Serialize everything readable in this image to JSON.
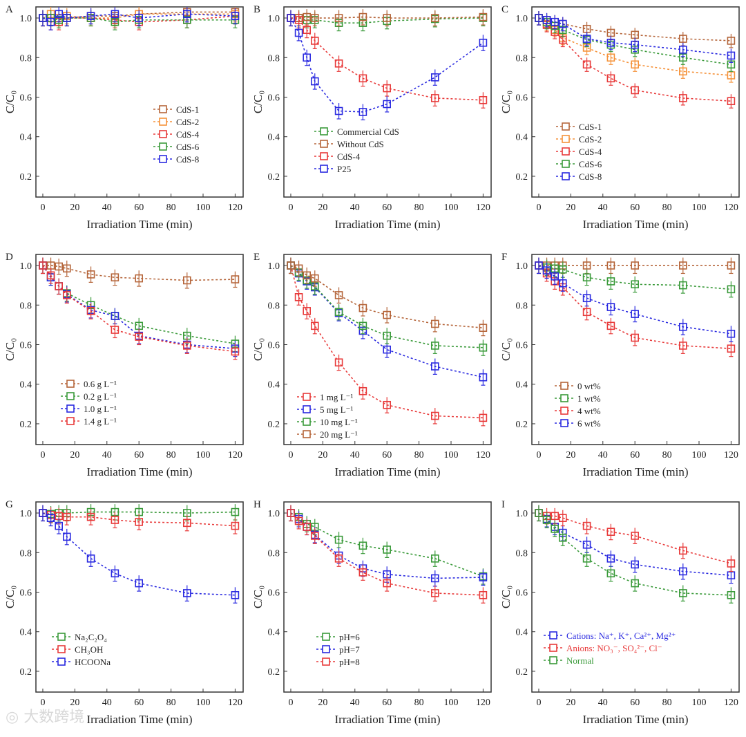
{
  "watermark": "大数跨境",
  "chart_data": [
    {
      "panel": "A",
      "type": "line",
      "xlabel": "Irradiation Time (min)",
      "ylabel": "C/C₀",
      "xlim": [
        -4.3,
        125
      ],
      "ylim": [
        0.095,
        1.056
      ],
      "xticks": [
        0,
        20,
        40,
        60,
        80,
        100,
        120
      ],
      "yticks": [
        0.2,
        0.4,
        0.6,
        0.8,
        1.0
      ],
      "legend_position": "center-right",
      "error_bar": 0.04,
      "x": [
        0,
        5,
        10,
        15,
        30,
        45,
        60,
        90,
        120
      ],
      "series": [
        {
          "name": "CdS-1",
          "color": "#b5653a",
          "values": [
            1,
            1.0,
            1.0,
            1.0,
            1.01,
            1.01,
            1.02,
            1.03,
            1.03
          ]
        },
        {
          "name": "CdS-2",
          "color": "#f5923a",
          "values": [
            1,
            1.02,
            1.0,
            1.01,
            1.0,
            1.0,
            1.02,
            1.02,
            1.02
          ]
        },
        {
          "name": "CdS-4",
          "color": "#e83a3a",
          "values": [
            1,
            0.98,
            0.98,
            1.0,
            1.0,
            0.99,
            0.98,
            0.99,
            1.01
          ]
        },
        {
          "name": "CdS-6",
          "color": "#3a9a3a",
          "values": [
            1,
            1.0,
            0.99,
            1.0,
            1.0,
            0.98,
            0.99,
            0.99,
            0.99
          ]
        },
        {
          "name": "CdS-8",
          "color": "#2a2ae0",
          "values": [
            1,
            0.98,
            1.02,
            1.0,
            1.01,
            1.02,
            1.0,
            1.02,
            1.01
          ]
        }
      ]
    },
    {
      "panel": "B",
      "type": "line",
      "xlabel": "Irradiation Time (min)",
      "ylabel": "C/C₀",
      "xlim": [
        -4.3,
        125
      ],
      "ylim": [
        0.095,
        1.056
      ],
      "xticks": [
        0,
        20,
        40,
        60,
        80,
        100,
        120
      ],
      "yticks": [
        0.2,
        0.4,
        0.6,
        0.8,
        1.0
      ],
      "legend_position": "lower-left",
      "error_bar": 0.04,
      "x": [
        0,
        5,
        10,
        15,
        30,
        45,
        60,
        90,
        120
      ],
      "series": [
        {
          "name": "Commercial CdS",
          "color": "#3a9a3a",
          "values": [
            1,
            1.0,
            0.99,
            0.99,
            0.975,
            0.975,
            0.985,
            0.995,
            1.0
          ]
        },
        {
          "name": "Without CdS",
          "color": "#b5653a",
          "values": [
            1,
            1.0,
            1.005,
            1.0,
            1.0,
            1.005,
            1.0,
            1.0,
            1.005
          ]
        },
        {
          "name": "CdS-4",
          "color": "#e83a3a",
          "values": [
            1,
            0.99,
            0.94,
            0.885,
            0.77,
            0.695,
            0.645,
            0.595,
            0.585
          ]
        },
        {
          "name": "P25",
          "color": "#2a2ae0",
          "values": [
            1,
            0.925,
            0.8,
            0.68,
            0.53,
            0.525,
            0.565,
            0.7,
            0.875
          ]
        }
      ]
    },
    {
      "panel": "C",
      "type": "line",
      "xlabel": "Irradiation Time (min)",
      "ylabel": "C/C₀",
      "xlim": [
        -4.3,
        125
      ],
      "ylim": [
        0.095,
        1.056
      ],
      "xticks": [
        0,
        20,
        40,
        60,
        80,
        100,
        120
      ],
      "yticks": [
        0.2,
        0.4,
        0.6,
        0.8,
        1.0
      ],
      "legend_position": "lower-left",
      "error_bar": 0.035,
      "x": [
        0,
        5,
        10,
        15,
        30,
        45,
        60,
        90,
        120
      ],
      "series": [
        {
          "name": "CdS-1",
          "color": "#b5653a",
          "values": [
            1,
            0.99,
            0.98,
            0.97,
            0.945,
            0.925,
            0.915,
            0.895,
            0.885
          ]
        },
        {
          "name": "CdS-2",
          "color": "#f5923a",
          "values": [
            1,
            0.97,
            0.94,
            0.9,
            0.85,
            0.8,
            0.765,
            0.73,
            0.71
          ]
        },
        {
          "name": "CdS-4",
          "color": "#e83a3a",
          "values": [
            1,
            0.965,
            0.93,
            0.89,
            0.765,
            0.695,
            0.635,
            0.595,
            0.58
          ]
        },
        {
          "name": "CdS-6",
          "color": "#3a9a3a",
          "values": [
            1,
            0.98,
            0.96,
            0.94,
            0.89,
            0.865,
            0.84,
            0.8,
            0.765
          ]
        },
        {
          "name": "CdS-8",
          "color": "#2a2ae0",
          "values": [
            1,
            0.99,
            0.98,
            0.97,
            0.895,
            0.875,
            0.865,
            0.84,
            0.81
          ]
        }
      ]
    },
    {
      "panel": "D",
      "type": "line",
      "xlabel": "Irradiation Time (min)",
      "ylabel": "C/C₀",
      "xlim": [
        -4.3,
        125
      ],
      "ylim": [
        0.095,
        1.056
      ],
      "xticks": [
        0,
        20,
        40,
        60,
        80,
        100,
        120
      ],
      "yticks": [
        0.2,
        0.4,
        0.6,
        0.8,
        1.0
      ],
      "legend_position": "lower-left",
      "error_bar": 0.04,
      "x": [
        0,
        5,
        10,
        15,
        30,
        45,
        60,
        90,
        120
      ],
      "series": [
        {
          "name": "0.6 g L⁻¹",
          "color": "#b5653a",
          "values": [
            1,
            1.0,
            0.995,
            0.985,
            0.955,
            0.94,
            0.935,
            0.925,
            0.93
          ]
        },
        {
          "name": "0.2 g L⁻¹",
          "color": "#3a9a3a",
          "values": [
            1,
            0.94,
            0.895,
            0.86,
            0.8,
            0.745,
            0.695,
            0.645,
            0.605
          ]
        },
        {
          "name": "1.0 g L⁻¹",
          "color": "#2a2ae0",
          "values": [
            1,
            0.94,
            0.895,
            0.855,
            0.775,
            0.745,
            0.645,
            0.6,
            0.58
          ]
        },
        {
          "name": "1.4 g L⁻¹",
          "color": "#e83a3a",
          "values": [
            1,
            0.95,
            0.895,
            0.85,
            0.77,
            0.675,
            0.64,
            0.595,
            0.565
          ]
        }
      ]
    },
    {
      "panel": "E",
      "type": "line",
      "xlabel": "Irradiation Time (min)",
      "ylabel": "C/C₀",
      "xlim": [
        -4.3,
        125
      ],
      "ylim": [
        0.095,
        1.056
      ],
      "xticks": [
        0,
        20,
        40,
        60,
        80,
        100,
        120
      ],
      "yticks": [
        0.2,
        0.4,
        0.6,
        0.8,
        1.0
      ],
      "legend_position": "lower-left",
      "error_bar": 0.04,
      "x": [
        0,
        5,
        10,
        15,
        30,
        45,
        60,
        90,
        120
      ],
      "series": [
        {
          "name": "1 mg L⁻¹",
          "color": "#e83a3a",
          "values": [
            1,
            0.84,
            0.77,
            0.695,
            0.51,
            0.365,
            0.295,
            0.24,
            0.23
          ]
        },
        {
          "name": "5 mg L⁻¹",
          "color": "#2a2ae0",
          "values": [
            1,
            0.96,
            0.92,
            0.89,
            0.76,
            0.67,
            0.575,
            0.49,
            0.435
          ]
        },
        {
          "name": "10 mg L⁻¹",
          "color": "#3a9a3a",
          "values": [
            1,
            0.965,
            0.925,
            0.895,
            0.765,
            0.695,
            0.645,
            0.595,
            0.585
          ]
        },
        {
          "name": "20 mg L⁻¹",
          "color": "#b5653a",
          "values": [
            1,
            0.985,
            0.95,
            0.935,
            0.85,
            0.785,
            0.75,
            0.705,
            0.685
          ]
        }
      ]
    },
    {
      "panel": "F",
      "type": "line",
      "xlabel": "Irradiation Time (min)",
      "ylabel": "C/C₀",
      "xlim": [
        -4.3,
        125
      ],
      "ylim": [
        0.095,
        1.056
      ],
      "xticks": [
        0,
        20,
        40,
        60,
        80,
        100,
        120
      ],
      "yticks": [
        0.2,
        0.4,
        0.6,
        0.8,
        1.0
      ],
      "legend_position": "lower-left",
      "error_bar": 0.04,
      "x": [
        0,
        5,
        10,
        15,
        30,
        45,
        60,
        90,
        120
      ],
      "series": [
        {
          "name": "0 wt%",
          "color": "#b5653a",
          "values": [
            1,
            1,
            1,
            1,
            1,
            1,
            1,
            1,
            1
          ]
        },
        {
          "name": "1 wt%",
          "color": "#3a9a3a",
          "values": [
            1,
            0.99,
            0.985,
            0.98,
            0.94,
            0.92,
            0.905,
            0.9,
            0.88
          ]
        },
        {
          "name": "4 wt%",
          "color": "#e83a3a",
          "values": [
            1,
            0.96,
            0.92,
            0.89,
            0.765,
            0.695,
            0.635,
            0.595,
            0.58
          ]
        },
        {
          "name": "6 wt%",
          "color": "#2a2ae0",
          "values": [
            1,
            0.975,
            0.945,
            0.91,
            0.835,
            0.79,
            0.755,
            0.69,
            0.655
          ]
        }
      ]
    },
    {
      "panel": "G",
      "type": "line",
      "xlabel": "Irradiation Time (min)",
      "ylabel": "C/C₀",
      "xlim": [
        -4.3,
        125
      ],
      "ylim": [
        0.095,
        1.056
      ],
      "xticks": [
        0,
        20,
        40,
        60,
        80,
        100,
        120
      ],
      "yticks": [
        0.2,
        0.4,
        0.6,
        0.8,
        1.0
      ],
      "legend_position": "lower-left",
      "error_bar": 0.04,
      "x": [
        0,
        5,
        10,
        15,
        30,
        45,
        60,
        90,
        120
      ],
      "series": [
        {
          "name": "Na₂C₂O₄",
          "color": "#3a9a3a",
          "values": [
            1,
            0.995,
            1.0,
            1.0,
            1.005,
            1.005,
            1.005,
            1.0,
            1.005
          ]
        },
        {
          "name": "CH₃OH",
          "color": "#e83a3a",
          "values": [
            1,
            0.99,
            0.985,
            0.98,
            0.98,
            0.965,
            0.955,
            0.95,
            0.935
          ]
        },
        {
          "name": "HCOONa",
          "color": "#2a2ae0",
          "values": [
            1,
            0.975,
            0.935,
            0.88,
            0.77,
            0.695,
            0.645,
            0.595,
            0.585
          ]
        }
      ]
    },
    {
      "panel": "H",
      "type": "line",
      "xlabel": "Irradiation Time (min)",
      "ylabel": "C/C₀",
      "xlim": [
        -4.3,
        125
      ],
      "ylim": [
        0.095,
        1.056
      ],
      "xticks": [
        0,
        20,
        40,
        60,
        80,
        100,
        120
      ],
      "yticks": [
        0.2,
        0.4,
        0.6,
        0.8,
        1.0
      ],
      "legend_position": "lower-left",
      "error_bar": 0.04,
      "x": [
        0,
        5,
        10,
        15,
        30,
        45,
        60,
        90,
        120
      ],
      "series": [
        {
          "name": "pH=6",
          "color": "#3a9a3a",
          "values": [
            1,
            0.98,
            0.945,
            0.93,
            0.865,
            0.835,
            0.815,
            0.77,
            0.68
          ]
        },
        {
          "name": "pH=7",
          "color": "#2a2ae0",
          "values": [
            1,
            0.97,
            0.93,
            0.89,
            0.785,
            0.72,
            0.69,
            0.67,
            0.675
          ]
        },
        {
          "name": "pH=8",
          "color": "#e83a3a",
          "values": [
            1,
            0.96,
            0.93,
            0.885,
            0.77,
            0.7,
            0.645,
            0.595,
            0.585
          ]
        }
      ]
    },
    {
      "panel": "I",
      "type": "line",
      "xlabel": "Irradiation Time (min)",
      "ylabel": "C/C₀",
      "xlim": [
        -4.3,
        125
      ],
      "ylim": [
        0.095,
        1.056
      ],
      "xticks": [
        0,
        20,
        40,
        60,
        80,
        100,
        120
      ],
      "yticks": [
        0.2,
        0.4,
        0.6,
        0.8,
        1.0
      ],
      "legend_position": "lower-left",
      "error_bar": 0.04,
      "x": [
        0,
        5,
        10,
        15,
        30,
        45,
        60,
        90,
        120
      ],
      "series": [
        {
          "name": "Cations: Na⁺, K⁺, Ca²⁺, Mg²⁺",
          "color": "#2a2ae0",
          "values": [
            1,
            0.97,
            0.93,
            0.9,
            0.84,
            0.77,
            0.74,
            0.705,
            0.685
          ]
        },
        {
          "name": "Anions: NO₃⁻, SO₄²⁻, Cl⁻",
          "color": "#e83a3a",
          "values": [
            1,
            0.985,
            0.985,
            0.975,
            0.935,
            0.905,
            0.885,
            0.81,
            0.745
          ]
        },
        {
          "name": "Normal",
          "color": "#3a9a3a",
          "values": [
            1,
            0.965,
            0.92,
            0.875,
            0.77,
            0.695,
            0.645,
            0.595,
            0.585
          ]
        }
      ]
    }
  ]
}
